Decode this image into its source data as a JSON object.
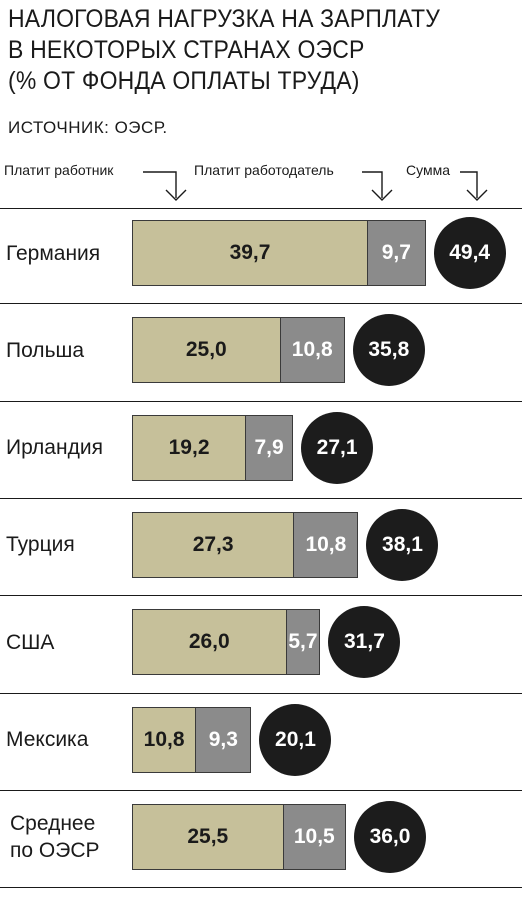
{
  "header": {
    "title_lines": [
      "НАЛОГОВАЯ НАГРУЗКА НА ЗАРПЛАТУ",
      "В НЕКОТОРЫХ СТРАНАХ ОЭСР",
      "(% ОТ ФОНДА ОПЛАТЫ ТРУДА)"
    ],
    "source": "ИСТОЧНИК: ОЭСР."
  },
  "legend": {
    "employee": "Платит работник",
    "employer": "Платит работодатель",
    "total": "Сумма"
  },
  "colors": {
    "employee": "#c6c09a",
    "employer": "#8b8b8b",
    "total": "#1c1c1c"
  },
  "chart_data": {
    "type": "bar",
    "orientation": "horizontal",
    "stacked": true,
    "categories": [
      "Германия",
      "Польша",
      "Ирландия",
      "Турция",
      "США",
      "Мексика",
      "Среднее по ОЭСР"
    ],
    "series": [
      {
        "name": "Платит работник",
        "values": [
          39.7,
          25.0,
          19.2,
          27.3,
          26.0,
          10.8,
          25.5
        ]
      },
      {
        "name": "Платит работодатель",
        "values": [
          9.7,
          10.8,
          7.9,
          10.8,
          5.7,
          9.3,
          10.5
        ]
      }
    ],
    "totals": [
      49.4,
      35.8,
      27.1,
      38.1,
      31.7,
      20.1,
      36.0
    ],
    "labels": {
      "employee": [
        "39,7",
        "25,0",
        "19,2",
        "27,3",
        "26,0",
        "10,8",
        "25,5"
      ],
      "employer": [
        "9,7",
        "10,8",
        "7,9",
        "10,8",
        "5,7",
        "9,3",
        "10,5"
      ],
      "total": [
        "49,4",
        "35,8",
        "27,1",
        "38,1",
        "31,7",
        "20,1",
        "36,0"
      ]
    },
    "category_lines": [
      [
        "Германия"
      ],
      [
        "Польша"
      ],
      [
        "Ирландия"
      ],
      [
        "Турция"
      ],
      [
        "США"
      ],
      [
        "Мексика"
      ],
      [
        "Среднее",
        "по ОЭСР"
      ]
    ]
  }
}
